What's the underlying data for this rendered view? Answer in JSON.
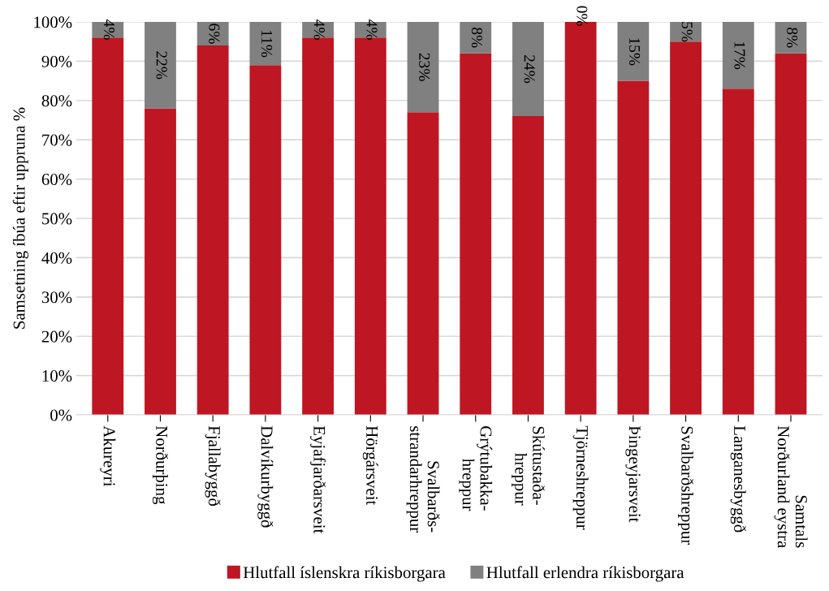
{
  "chart_data": {
    "type": "bar",
    "stacked": true,
    "ylabel": "Samsetning íbúa eftir uppruna %",
    "categories": [
      "Akureyri",
      "Norðurþing",
      "Fjallabyggð",
      "Dalvíkurbyggð",
      "Eyjafjarðarsveit",
      "Hörgársveit",
      "Svalbarðs-\nstrandarhreppur",
      "Grýtubakka-\nhreppur",
      "Skútustaða-\nhreppur",
      "Tjörneshreppur",
      "Þingeyjarsveit",
      "Svalbarðshreppur",
      "Langanesbyggð",
      "Samtals\nNorðurland eystra"
    ],
    "series": [
      {
        "name": "Hlutfall íslenskra ríkisborgara",
        "color": "#be1622",
        "values": [
          96,
          78,
          94,
          89,
          96,
          96,
          77,
          92,
          76,
          100,
          85,
          95,
          83,
          92
        ]
      },
      {
        "name": "Hlutfall erlendra ríkisborgara",
        "color": "#808080",
        "values": [
          4,
          22,
          6,
          11,
          4,
          4,
          23,
          8,
          24,
          0,
          15,
          5,
          17,
          8
        ],
        "value_labels": [
          "4%",
          "22%",
          "6%",
          "11%",
          "4%",
          "4%",
          "23%",
          "8%",
          "24%",
          "0%",
          "15%",
          "5%",
          "17%",
          "8%"
        ]
      }
    ],
    "ylim": [
      0,
      100
    ],
    "yticks": [
      {
        "value": 0,
        "label": "0%"
      },
      {
        "value": 10,
        "label": "10%"
      },
      {
        "value": 20,
        "label": "20%"
      },
      {
        "value": 30,
        "label": "30%"
      },
      {
        "value": 40,
        "label": "40%"
      },
      {
        "value": 50,
        "label": "50%"
      },
      {
        "value": 60,
        "label": "60%"
      },
      {
        "value": 70,
        "label": "70%"
      },
      {
        "value": 80,
        "label": "80%"
      },
      {
        "value": 90,
        "label": "90%"
      },
      {
        "value": 100,
        "label": "100%"
      }
    ],
    "grid": "y",
    "legend": "bottom"
  }
}
